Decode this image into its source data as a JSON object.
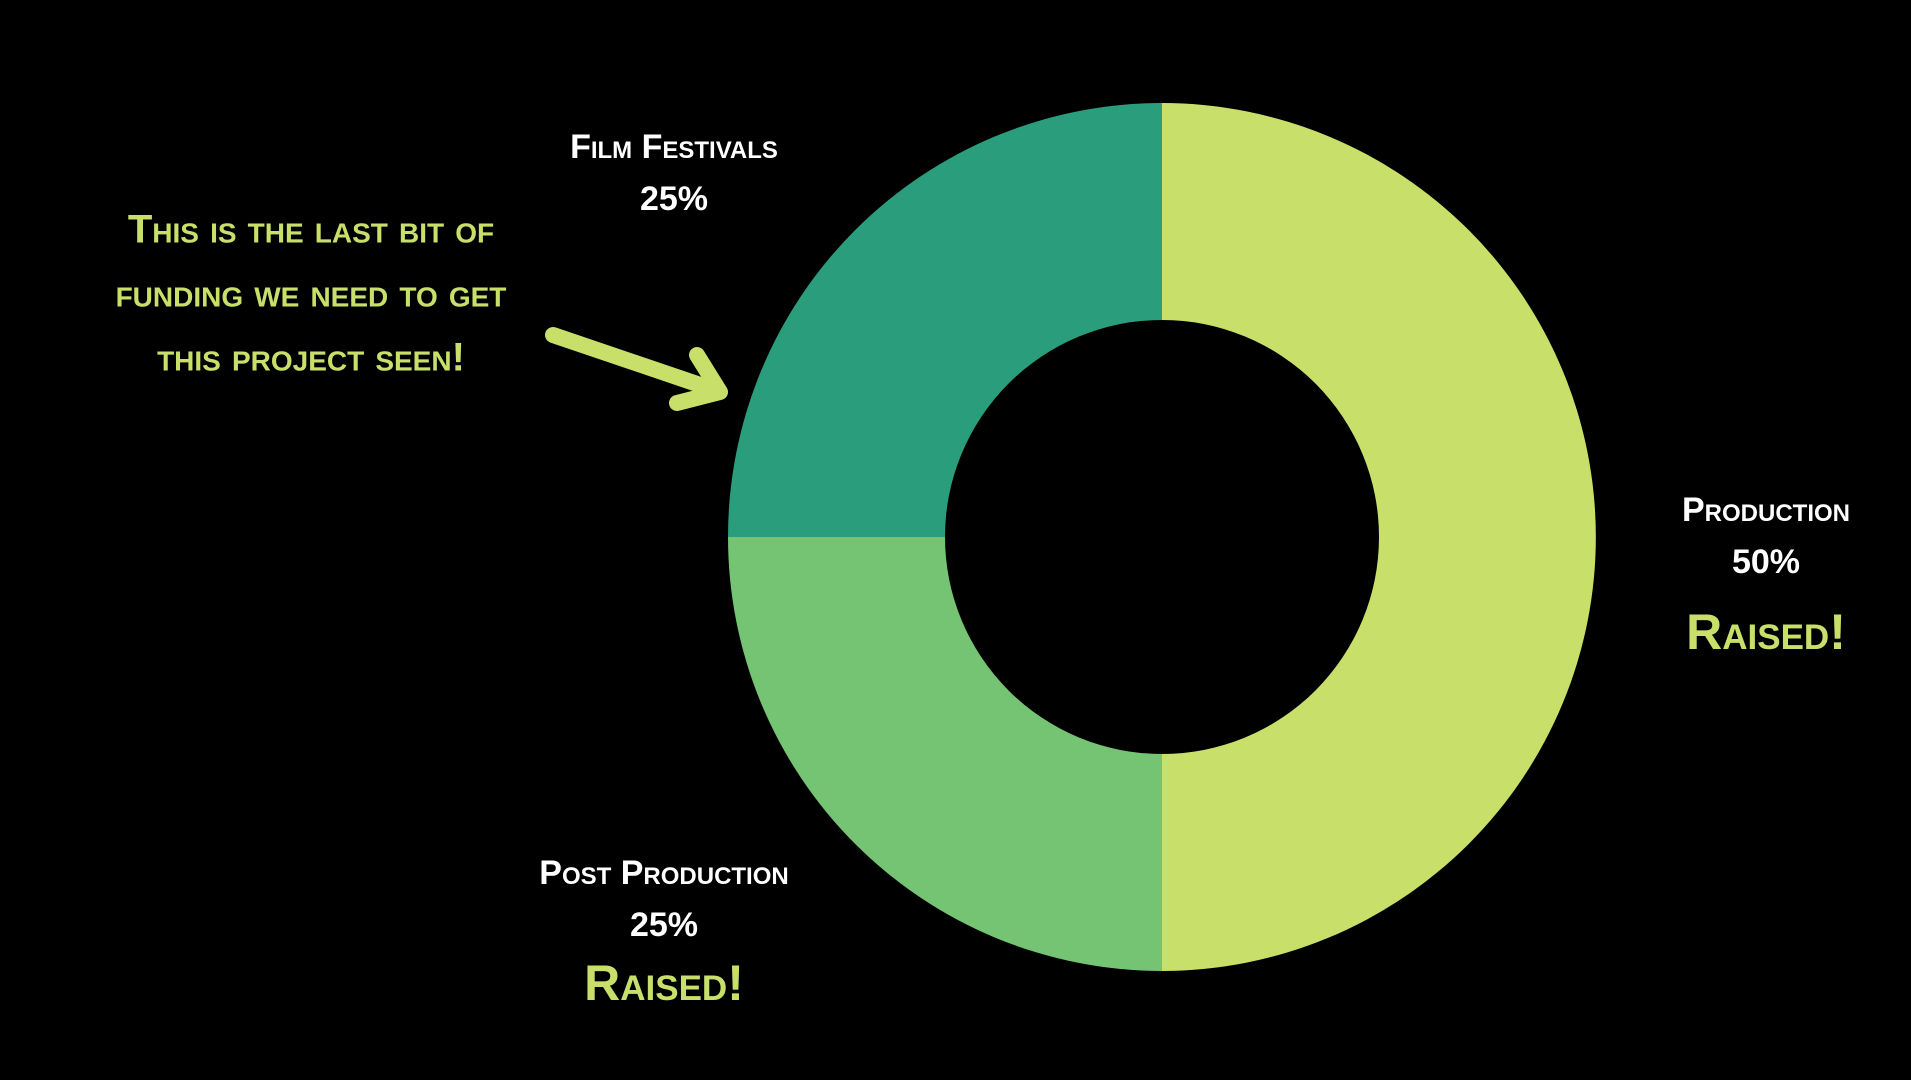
{
  "chart_data": {
    "type": "donut",
    "categories": [
      "Production",
      "Post Production",
      "Film Festivals"
    ],
    "values": [
      50,
      25,
      25
    ],
    "value_labels": [
      "50%",
      "25%",
      "25%"
    ],
    "colors": [
      "#c8e06a",
      "#74c473",
      "#2a9e7c"
    ],
    "annotations": [
      "Raised!",
      "Raised!"
    ],
    "callout": [
      "This is the last bit of",
      "funding we need to get",
      "this project seen!"
    ]
  }
}
